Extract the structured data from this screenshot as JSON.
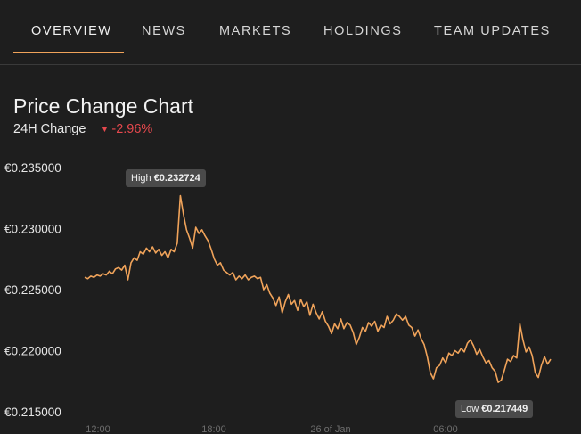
{
  "nav": {
    "tabs": [
      "OVERVIEW",
      "NEWS",
      "MARKETS",
      "HOLDINGS",
      "TEAM UPDATES"
    ],
    "active": 0
  },
  "chart_title": "Price Change Chart",
  "change": {
    "label": "24H Change",
    "value": "-2.96%",
    "arrow": "▼"
  },
  "colors": {
    "line": "#f0a35a",
    "negative": "#e5484d",
    "accent": "#f0a35a"
  },
  "tooltips": {
    "high_label": "High",
    "high_value": "€0.232724",
    "low_label": "Low",
    "low_value": "€0.217449"
  },
  "chart_data": {
    "type": "line",
    "y_ticks": [
      "€0.235000",
      "€0.230000",
      "€0.225000",
      "€0.220000",
      "€0.215000"
    ],
    "ylim": [
      0.215,
      0.235
    ],
    "x_ticks": [
      "12:00",
      "18:00",
      "26 of Jan",
      "06:00"
    ],
    "series": [
      {
        "values": [
          0.226,
          0.2259,
          0.2261,
          0.226,
          0.2262,
          0.2261,
          0.2263,
          0.2262,
          0.2265,
          0.2263,
          0.2267,
          0.2268,
          0.2266,
          0.227,
          0.2258,
          0.2272,
          0.2276,
          0.2274,
          0.2281,
          0.2279,
          0.2284,
          0.2281,
          0.2285,
          0.228,
          0.2283,
          0.2278,
          0.2281,
          0.2276,
          0.2283,
          0.2281,
          0.2288,
          0.2327,
          0.2312,
          0.2299,
          0.2292,
          0.2284,
          0.2301,
          0.2296,
          0.2299,
          0.2294,
          0.229,
          0.2283,
          0.2275,
          0.227,
          0.2272,
          0.2266,
          0.2264,
          0.2262,
          0.2264,
          0.2258,
          0.2261,
          0.2259,
          0.2262,
          0.2258,
          0.226,
          0.2261,
          0.2259,
          0.226,
          0.225,
          0.2254,
          0.2247,
          0.2243,
          0.2237,
          0.2244,
          0.2231,
          0.224,
          0.2246,
          0.2238,
          0.2241,
          0.2233,
          0.2242,
          0.2236,
          0.224,
          0.2229,
          0.2238,
          0.2231,
          0.2226,
          0.2232,
          0.2224,
          0.222,
          0.2214,
          0.2222,
          0.2218,
          0.2226,
          0.2218,
          0.2223,
          0.2221,
          0.2215,
          0.2205,
          0.2211,
          0.2219,
          0.2216,
          0.2223,
          0.222,
          0.2224,
          0.2216,
          0.2221,
          0.2219,
          0.2228,
          0.2222,
          0.2225,
          0.223,
          0.2228,
          0.2225,
          0.2228,
          0.2221,
          0.2219,
          0.2212,
          0.2217,
          0.221,
          0.2205,
          0.2195,
          0.2182,
          0.2177,
          0.2186,
          0.2188,
          0.2194,
          0.219,
          0.2198,
          0.2196,
          0.22,
          0.2198,
          0.2202,
          0.2199,
          0.2206,
          0.2209,
          0.2204,
          0.2197,
          0.2201,
          0.2195,
          0.219,
          0.2192,
          0.2186,
          0.2183,
          0.2174,
          0.2176,
          0.2184,
          0.2193,
          0.2191,
          0.2196,
          0.2194,
          0.2222,
          0.2209,
          0.2199,
          0.2203,
          0.2196,
          0.2182,
          0.2178,
          0.2188,
          0.2195,
          0.2189,
          0.2193
        ]
      }
    ]
  }
}
